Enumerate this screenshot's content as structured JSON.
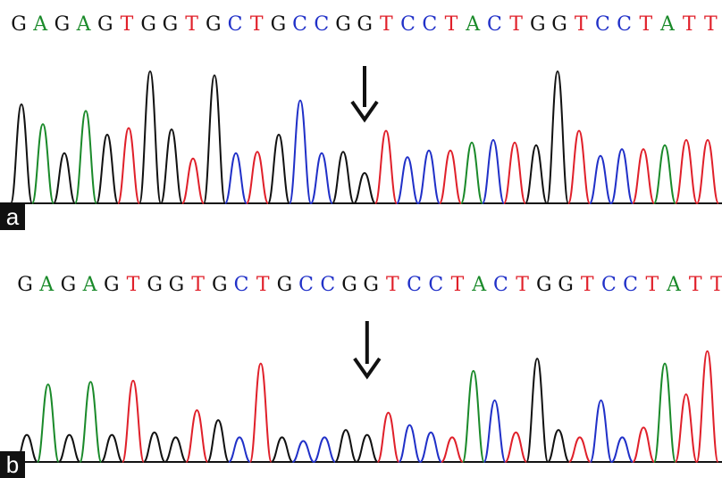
{
  "colors": {
    "A": "#1a8a2a",
    "G": "#111111",
    "T": "#e0202a",
    "C": "#2030c8",
    "arrow": "#111111",
    "baseline": "#111111"
  },
  "panels": [
    {
      "label": "a",
      "sequence": "GAGAGTGGTGCTGCCGGTCCTACTGGTCCTATT",
      "peaks": [
        0.75,
        0.6,
        0.38,
        0.7,
        0.52,
        0.57,
        1.0,
        0.56,
        0.34,
        0.97,
        0.38,
        0.39,
        0.52,
        0.78,
        0.38,
        0.39,
        0.23,
        0.55,
        0.35,
        0.4,
        0.4,
        0.46,
        0.48,
        0.46,
        0.44,
        1.0,
        0.55,
        0.36,
        0.41,
        0.41,
        0.44,
        0.48,
        0.48
      ],
      "arrow_index": 16
    },
    {
      "label": "b",
      "sequence": "GAGAGTGGTGCTGCCGGTCCTACTGGTCCTATT",
      "peaks": [
        0.22,
        0.63,
        0.22,
        0.65,
        0.22,
        0.66,
        0.24,
        0.2,
        0.42,
        0.34,
        0.2,
        0.8,
        0.2,
        0.17,
        0.2,
        0.26,
        0.22,
        0.4,
        0.3,
        0.24,
        0.2,
        0.74,
        0.5,
        0.24,
        0.84,
        0.26,
        0.2,
        0.5,
        0.2,
        0.28,
        0.8,
        0.55,
        0.9
      ],
      "arrow_index": 16
    }
  ]
}
